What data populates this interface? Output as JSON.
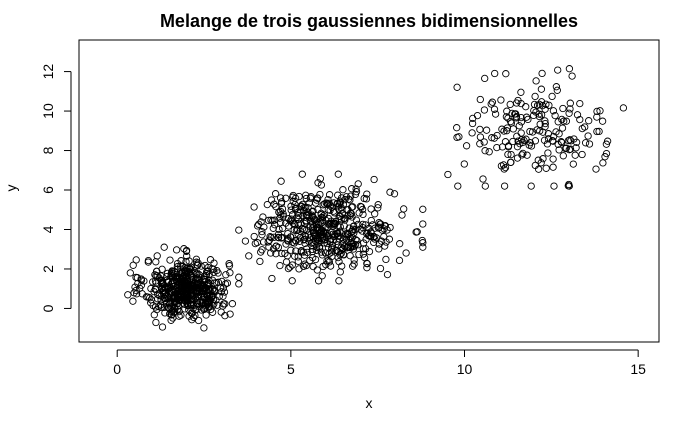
{
  "chart_data": {
    "type": "scatter",
    "title": "Melange de trois gaussiennes bidimensionnelles",
    "xlabel": "x",
    "ylabel": "y",
    "xlim": [
      -1.1,
      15.6
    ],
    "ylim": [
      -1.7,
      13.6
    ],
    "x_ticks": [
      0,
      5,
      10,
      15
    ],
    "y_ticks": [
      0,
      2,
      4,
      6,
      8,
      10,
      12
    ],
    "marker": "open-circle",
    "color": "#000000",
    "grid": false,
    "legend": "none",
    "clusters": [
      {
        "n": 500,
        "mean": [
          2.0,
          1.0
        ],
        "sd": [
          0.6,
          0.75
        ],
        "x_range": [
          -0.5,
          3.5
        ],
        "y_range": [
          -1.2,
          3.2
        ]
      },
      {
        "n": 500,
        "mean": [
          6.0,
          4.0
        ],
        "sd": [
          1.0,
          1.0
        ],
        "x_range": [
          3.5,
          8.8
        ],
        "y_range": [
          1.4,
          6.8
        ]
      },
      {
        "n": 200,
        "mean": [
          12.0,
          9.0
        ],
        "sd": [
          1.0,
          1.3
        ],
        "x_range": [
          9.5,
          14.8
        ],
        "y_range": [
          6.2,
          13.2
        ]
      }
    ]
  }
}
